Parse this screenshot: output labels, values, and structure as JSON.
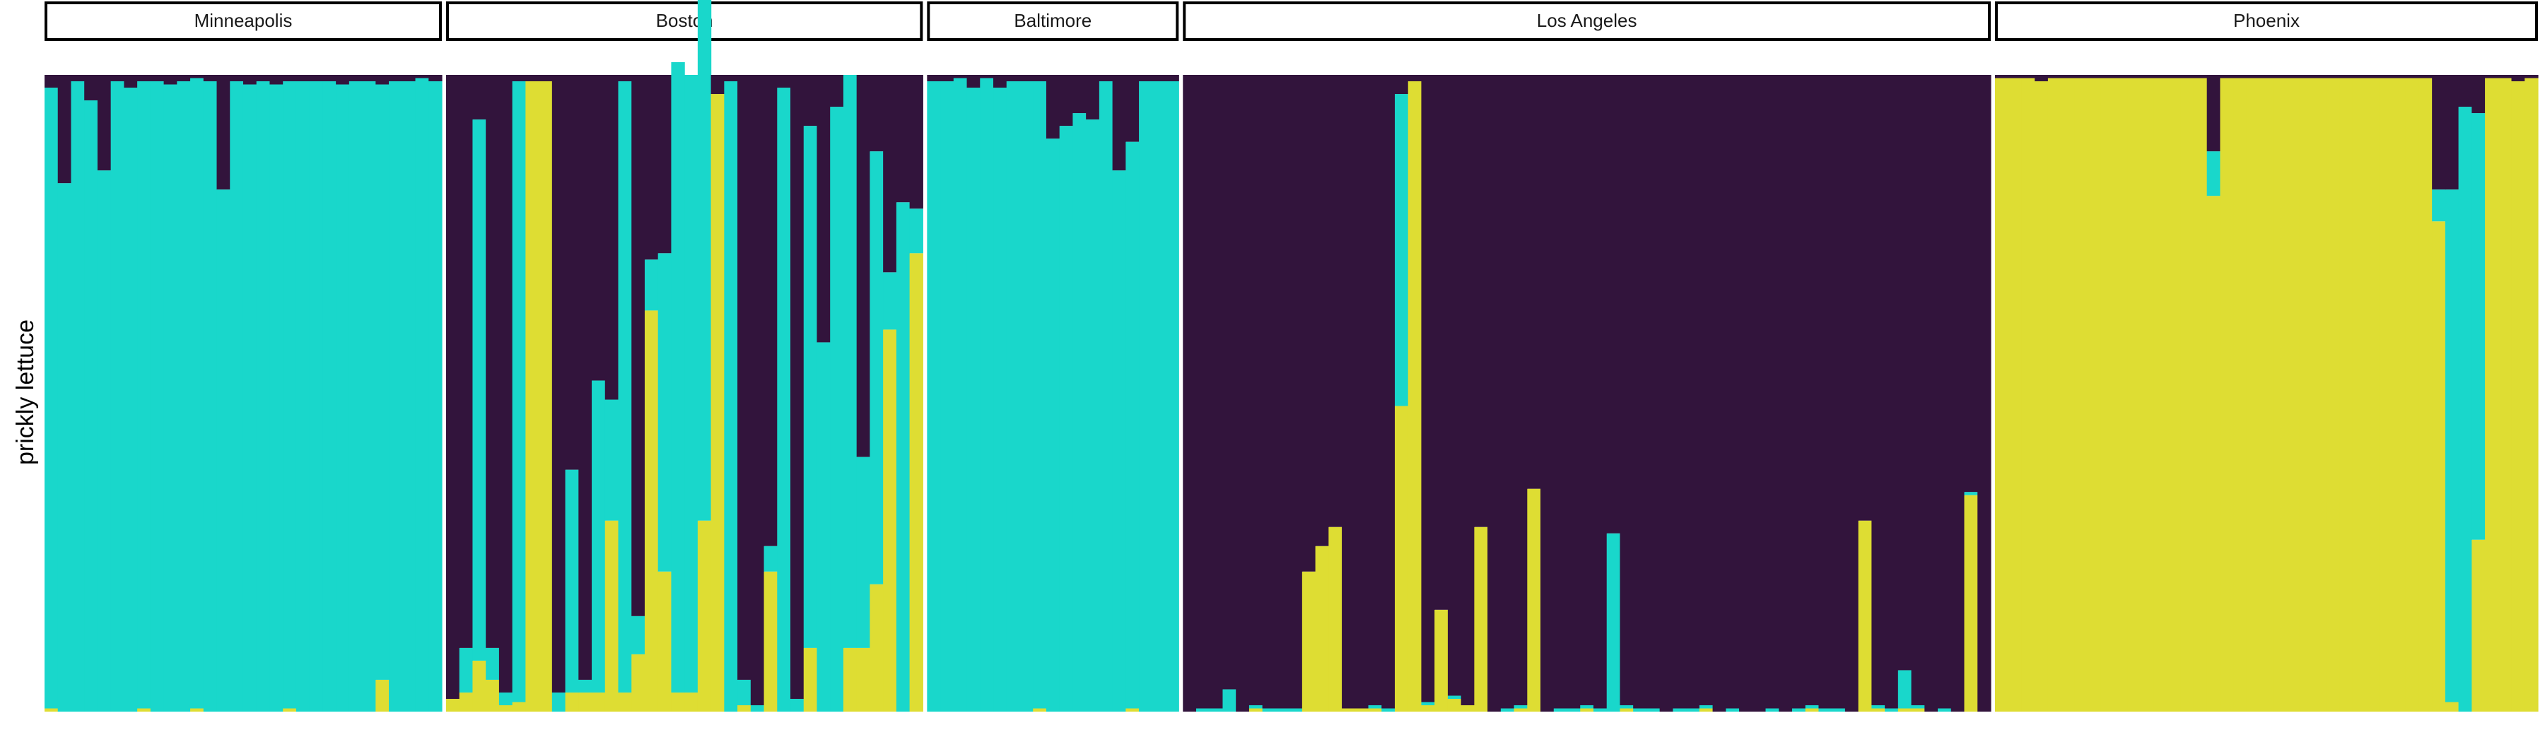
{
  "chart_data": {
    "type": "bar",
    "stacked": true,
    "ylabel": "prickly lettuce",
    "ylim": [
      0,
      1
    ],
    "colors": {
      "purple": "#32143c",
      "teal": "#19d7cb",
      "yellow": "#dedd33"
    },
    "series_order_bottom_to_top": [
      "yellow",
      "teal",
      "purple"
    ],
    "panels": [
      {
        "name": "Minneapolis",
        "bars": [
          [
            0.005,
            0.975,
            0.02
          ],
          [
            0.0,
            0.83,
            0.17
          ],
          [
            0.0,
            0.99,
            0.01
          ],
          [
            0.0,
            0.96,
            0.04
          ],
          [
            0.0,
            0.85,
            0.15
          ],
          [
            0.0,
            0.99,
            0.01
          ],
          [
            0.0,
            0.98,
            0.02
          ],
          [
            0.005,
            0.985,
            0.01
          ],
          [
            0.0,
            0.99,
            0.01
          ],
          [
            0.0,
            0.985,
            0.015
          ],
          [
            0.0,
            0.99,
            0.01
          ],
          [
            0.005,
            0.99,
            0.005
          ],
          [
            0.0,
            0.99,
            0.01
          ],
          [
            0.0,
            0.82,
            0.18
          ],
          [
            0.0,
            0.99,
            0.01
          ],
          [
            0.0,
            0.985,
            0.015
          ],
          [
            0.0,
            0.99,
            0.01
          ],
          [
            0.0,
            0.985,
            0.015
          ],
          [
            0.005,
            0.985,
            0.01
          ],
          [
            0.0,
            0.99,
            0.01
          ],
          [
            0.0,
            0.99,
            0.01
          ],
          [
            0.0,
            0.99,
            0.01
          ],
          [
            0.0,
            0.985,
            0.015
          ],
          [
            0.0,
            0.99,
            0.01
          ],
          [
            0.0,
            0.99,
            0.01
          ],
          [
            0.05,
            0.935,
            0.015
          ],
          [
            0.0,
            0.99,
            0.01
          ],
          [
            0.0,
            0.99,
            0.01
          ],
          [
            0.0,
            0.995,
            0.005
          ],
          [
            0.0,
            0.99,
            0.01
          ]
        ]
      },
      {
        "name": "Boston",
        "bars": [
          [
            0.02,
            0.0,
            0.98
          ],
          [
            0.03,
            0.07,
            0.9
          ],
          [
            0.08,
            0.85,
            0.07
          ],
          [
            0.05,
            0.05,
            0.9
          ],
          [
            0.01,
            0.02,
            0.97
          ],
          [
            0.015,
            0.975,
            0.01
          ],
          [
            0.99,
            0.0,
            0.01
          ],
          [
            0.99,
            0.0,
            0.01
          ],
          [
            0.0,
            0.03,
            0.97
          ],
          [
            0.03,
            0.35,
            0.62
          ],
          [
            0.03,
            0.02,
            0.95
          ],
          [
            0.03,
            0.49,
            0.48
          ],
          [
            0.3,
            0.19,
            0.51
          ],
          [
            0.03,
            0.96,
            0.01
          ],
          [
            0.09,
            0.06,
            0.85
          ],
          [
            0.63,
            0.08,
            0.29
          ],
          [
            0.22,
            0.5,
            0.28
          ],
          [
            0.03,
            0.99,
            0.0
          ],
          [
            0.03,
            0.97,
            0.0
          ],
          [
            0.3,
            0.98,
            0.0
          ],
          [
            0.97,
            0.0,
            0.03
          ],
          [
            0.0,
            0.99,
            0.01
          ],
          [
            0.01,
            0.04,
            0.95
          ],
          [
            0.0,
            0.01,
            0.99
          ],
          [
            0.22,
            0.04,
            0.74
          ],
          [
            0.0,
            0.98,
            0.02
          ],
          [
            0.0,
            0.02,
            0.98
          ],
          [
            0.1,
            0.82,
            0.08
          ],
          [
            0.0,
            0.58,
            0.42
          ],
          [
            0.0,
            0.95,
            0.05
          ],
          [
            0.1,
            0.9,
            0.0
          ],
          [
            0.1,
            0.3,
            0.6
          ],
          [
            0.2,
            0.68,
            0.12
          ],
          [
            0.6,
            0.09,
            0.31
          ],
          [
            0.0,
            0.8,
            0.2
          ],
          [
            0.72,
            0.07,
            0.21
          ]
        ]
      },
      {
        "name": "Baltimore",
        "bars": [
          [
            0.0,
            0.99,
            0.01
          ],
          [
            0.0,
            0.99,
            0.01
          ],
          [
            0.0,
            0.995,
            0.005
          ],
          [
            0.0,
            0.98,
            0.02
          ],
          [
            0.0,
            0.995,
            0.005
          ],
          [
            0.0,
            0.98,
            0.02
          ],
          [
            0.0,
            0.99,
            0.01
          ],
          [
            0.0,
            0.99,
            0.01
          ],
          [
            0.005,
            0.985,
            0.01
          ],
          [
            0.0,
            0.9,
            0.1
          ],
          [
            0.0,
            0.92,
            0.08
          ],
          [
            0.0,
            0.94,
            0.06
          ],
          [
            0.0,
            0.93,
            0.07
          ],
          [
            0.0,
            0.99,
            0.01
          ],
          [
            0.0,
            0.85,
            0.15
          ],
          [
            0.005,
            0.89,
            0.105
          ],
          [
            0.0,
            0.99,
            0.01
          ],
          [
            0.0,
            0.99,
            0.01
          ],
          [
            0.0,
            0.99,
            0.01
          ]
        ]
      },
      {
        "name": "Los Angeles",
        "bars": [
          [
            0.0,
            0.0,
            1.0
          ],
          [
            0.0,
            0.005,
            0.995
          ],
          [
            0.0,
            0.005,
            0.995
          ],
          [
            0.0,
            0.035,
            0.965
          ],
          [
            0.0,
            0.0,
            1.0
          ],
          [
            0.005,
            0.005,
            0.99
          ],
          [
            0.0,
            0.005,
            0.995
          ],
          [
            0.0,
            0.005,
            0.995
          ],
          [
            0.0,
            0.005,
            0.995
          ],
          [
            0.22,
            0.0,
            0.78
          ],
          [
            0.26,
            0.0,
            0.74
          ],
          [
            0.29,
            0.0,
            0.71
          ],
          [
            0.005,
            0.0,
            0.995
          ],
          [
            0.005,
            0.0,
            0.995
          ],
          [
            0.005,
            0.005,
            0.99
          ],
          [
            0.0,
            0.005,
            0.995
          ],
          [
            0.48,
            0.49,
            0.03
          ],
          [
            0.99,
            0.0,
            0.01
          ],
          [
            0.01,
            0.005,
            0.985
          ],
          [
            0.16,
            0.0,
            0.84
          ],
          [
            0.02,
            0.005,
            0.975
          ],
          [
            0.01,
            0.0,
            0.99
          ],
          [
            0.29,
            0.0,
            0.71
          ],
          [
            0.0,
            0.0,
            1.0
          ],
          [
            0.0,
            0.005,
            0.995
          ],
          [
            0.005,
            0.005,
            0.99
          ],
          [
            0.35,
            0.0,
            0.65
          ],
          [
            0.0,
            0.0,
            1.0
          ],
          [
            0.0,
            0.005,
            0.995
          ],
          [
            0.0,
            0.005,
            0.995
          ],
          [
            0.005,
            0.005,
            0.99
          ],
          [
            0.0,
            0.005,
            0.995
          ],
          [
            0.0,
            0.28,
            0.72
          ],
          [
            0.005,
            0.005,
            0.99
          ],
          [
            0.0,
            0.005,
            0.995
          ],
          [
            0.0,
            0.005,
            0.995
          ],
          [
            0.0,
            0.0,
            1.0
          ],
          [
            0.0,
            0.005,
            0.995
          ],
          [
            0.0,
            0.005,
            0.995
          ],
          [
            0.005,
            0.005,
            0.99
          ],
          [
            0.0,
            0.0,
            1.0
          ],
          [
            0.0,
            0.005,
            0.995
          ],
          [
            0.0,
            0.0,
            1.0
          ],
          [
            0.0,
            0.0,
            1.0
          ],
          [
            0.0,
            0.005,
            0.995
          ],
          [
            0.0,
            0.0,
            1.0
          ],
          [
            0.0,
            0.005,
            0.995
          ],
          [
            0.005,
            0.005,
            0.99
          ],
          [
            0.0,
            0.005,
            0.995
          ],
          [
            0.0,
            0.005,
            0.995
          ],
          [
            0.0,
            0.0,
            1.0
          ],
          [
            0.3,
            0.0,
            0.7
          ],
          [
            0.005,
            0.005,
            0.99
          ],
          [
            0.0,
            0.005,
            0.995
          ],
          [
            0.005,
            0.06,
            0.935
          ],
          [
            0.005,
            0.005,
            0.99
          ],
          [
            0.0,
            0.0,
            1.0
          ],
          [
            0.0,
            0.005,
            0.995
          ],
          [
            0.0,
            0.0,
            1.0
          ],
          [
            0.34,
            0.005,
            0.655
          ],
          [
            0.0,
            0.0,
            1.0
          ]
        ]
      },
      {
        "name": "Phoenix",
        "bars": [
          [
            0.995,
            0.0,
            0.005
          ],
          [
            0.995,
            0.0,
            0.005
          ],
          [
            0.995,
            0.0,
            0.005
          ],
          [
            0.99,
            0.0,
            0.01
          ],
          [
            0.995,
            0.0,
            0.005
          ],
          [
            0.995,
            0.0,
            0.005
          ],
          [
            0.995,
            0.0,
            0.005
          ],
          [
            0.995,
            0.0,
            0.005
          ],
          [
            0.995,
            0.0,
            0.005
          ],
          [
            0.995,
            0.0,
            0.005
          ],
          [
            0.995,
            0.0,
            0.005
          ],
          [
            0.995,
            0.0,
            0.005
          ],
          [
            0.995,
            0.0,
            0.005
          ],
          [
            0.995,
            0.0,
            0.005
          ],
          [
            0.995,
            0.0,
            0.005
          ],
          [
            0.995,
            0.0,
            0.005
          ],
          [
            0.81,
            0.07,
            0.12
          ],
          [
            0.995,
            0.0,
            0.005
          ],
          [
            0.995,
            0.0,
            0.005
          ],
          [
            0.995,
            0.0,
            0.005
          ],
          [
            0.995,
            0.0,
            0.005
          ],
          [
            0.995,
            0.0,
            0.005
          ],
          [
            0.995,
            0.0,
            0.005
          ],
          [
            0.995,
            0.0,
            0.005
          ],
          [
            0.995,
            0.0,
            0.005
          ],
          [
            0.995,
            0.0,
            0.005
          ],
          [
            0.995,
            0.0,
            0.005
          ],
          [
            0.995,
            0.0,
            0.005
          ],
          [
            0.995,
            0.0,
            0.005
          ],
          [
            0.995,
            0.0,
            0.005
          ],
          [
            0.995,
            0.0,
            0.005
          ],
          [
            0.995,
            0.0,
            0.005
          ],
          [
            0.995,
            0.0,
            0.005
          ],
          [
            0.77,
            0.05,
            0.18
          ],
          [
            0.015,
            0.805,
            0.18
          ],
          [
            0.0,
            0.95,
            0.05
          ],
          [
            0.27,
            0.67,
            0.06
          ],
          [
            0.995,
            0.0,
            0.005
          ],
          [
            0.995,
            0.0,
            0.005
          ],
          [
            0.99,
            0.0,
            0.01
          ],
          [
            0.995,
            0.0,
            0.005
          ]
        ]
      }
    ]
  }
}
